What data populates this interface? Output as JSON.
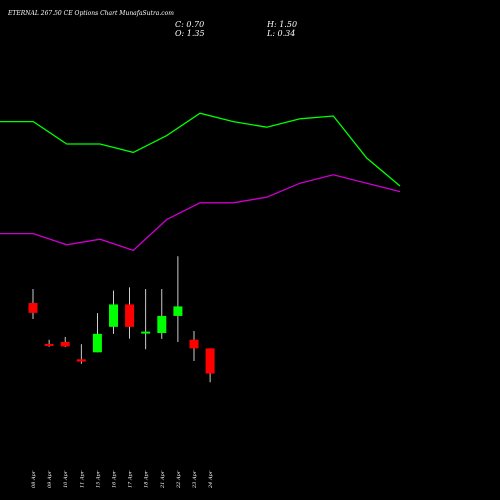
{
  "chart_data": {
    "type": "candlestick",
    "title": "ETERNAL 267.50 CE Options Chart MunafaSutra.com",
    "ohlc_summary": {
      "close": "C: 0.70",
      "open": "O: 1.35",
      "high": "H: 1.50",
      "low": "L: 0.34"
    },
    "colors": {
      "background": "#000000",
      "up": "#00ff00",
      "down": "#ff0000",
      "neutral": "#ffffff",
      "line_upper": "#00ff00",
      "line_lower": "#cc00cc"
    },
    "dates": [
      "08 Apr",
      "09 Apr",
      "10 Apr",
      "11 Apr",
      "15 Apr",
      "16 Apr",
      "17 Apr",
      "18 Apr",
      "21 Apr",
      "22 Apr",
      "23 Apr",
      "24 Apr"
    ],
    "candles": [
      {
        "open": 6.32,
        "high": 6.82,
        "low": 5.75,
        "close": 5.97
      },
      {
        "open": 4.86,
        "high": 5.01,
        "low": 4.76,
        "close": 4.84
      },
      {
        "open": 4.93,
        "high": 5.11,
        "low": 4.75,
        "close": 4.77
      },
      {
        "open": 4.31,
        "high": 4.85,
        "low": 4.15,
        "close": 4.23
      },
      {
        "open": 4.56,
        "high": 5.96,
        "low": 4.56,
        "close": 5.22
      },
      {
        "open": 5.47,
        "high": 6.77,
        "low": 5.22,
        "close": 6.27
      },
      {
        "open": 6.27,
        "high": 6.88,
        "low": 5.05,
        "close": 5.47
      },
      {
        "open": 5.25,
        "high": 6.82,
        "low": 4.67,
        "close": 5.3
      },
      {
        "open": 5.25,
        "high": 6.82,
        "low": 5.04,
        "close": 5.86
      },
      {
        "open": 5.86,
        "high": 7.99,
        "low": 4.93,
        "close": 6.2
      },
      {
        "open": 5.01,
        "high": 5.32,
        "low": 4.25,
        "close": 4.7
      },
      {
        "open": 4.7,
        "high": 4.7,
        "low": 3.49,
        "close": 3.8
      }
    ],
    "upper_line": [
      12.8,
      12.8,
      12.0,
      12.0,
      11.7,
      12.3,
      13.1,
      12.8,
      12.6,
      12.9,
      13.0,
      11.5,
      10.5
    ],
    "lower_line": [
      8.8,
      8.8,
      8.4,
      8.6,
      8.2,
      9.3,
      9.9,
      9.9,
      10.1,
      10.6,
      10.9,
      10.6,
      10.3
    ],
    "upper_line_x": [
      0.0,
      1.0,
      2.0,
      3.0,
      4.0,
      5.0,
      6.0,
      7.0,
      8.0,
      9.0,
      10.0,
      11.0,
      12.0
    ],
    "grid": false,
    "legend": "none"
  }
}
